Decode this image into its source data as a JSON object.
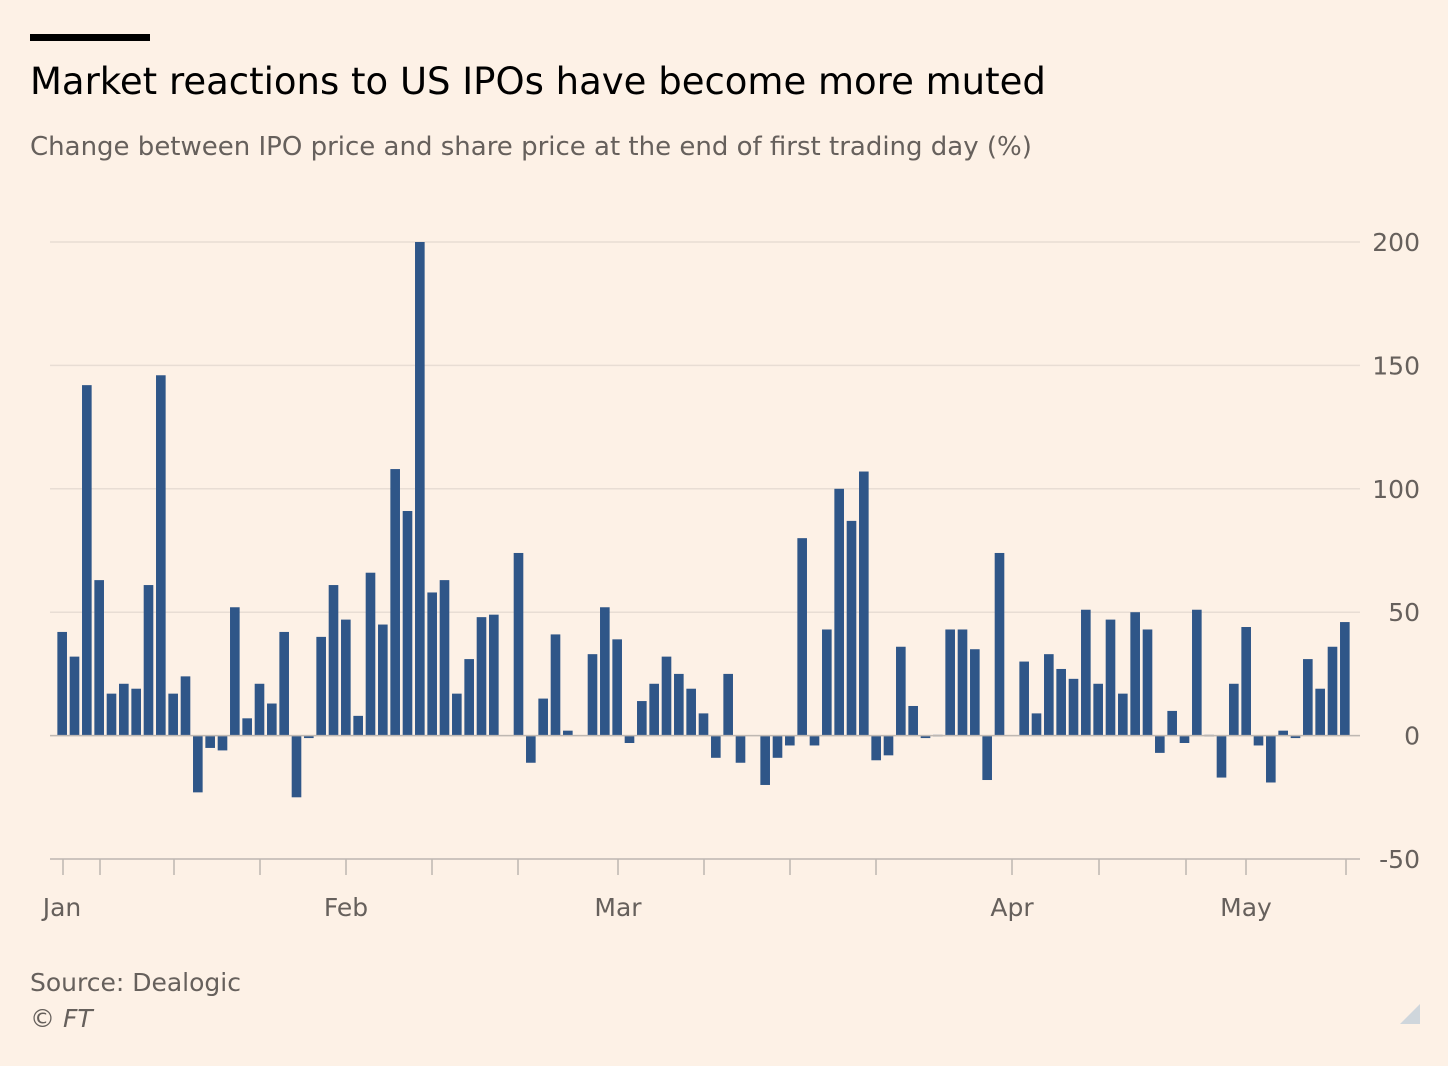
{
  "title": "Market reactions to US IPOs have become more muted",
  "subtitle": "Change between IPO price and share price at the end of first trading day (%)",
  "source": "Source: Dealogic",
  "copyright": "© FT",
  "colors": {
    "background": "#fdf1e6",
    "bar": "#2f5688",
    "grid": "#e8ddd4",
    "axis": "#bdb6b0",
    "text": "#66605c"
  },
  "chart_data": {
    "type": "bar",
    "title": "Market reactions to US IPOs have become more muted",
    "subtitle": "Change between IPO price and share price at the end of first trading day (%)",
    "ylim": [
      -50,
      200
    ],
    "yticks": [
      200,
      150,
      100,
      50,
      0,
      -50
    ],
    "xticks": [
      "Jan",
      "Feb",
      "Mar",
      "Apr",
      "May"
    ],
    "grid": true,
    "y_axis_position": "right",
    "values": [
      42,
      32,
      142,
      63,
      17,
      21,
      19,
      61,
      146,
      17,
      24,
      -23,
      -5,
      -6,
      52,
      7,
      21,
      13,
      42,
      -25,
      -1,
      40,
      61,
      47,
      8,
      66,
      45,
      108,
      91,
      200,
      58,
      63,
      17,
      31,
      48,
      49,
      null,
      74,
      -11,
      15,
      41,
      2,
      null,
      33,
      52,
      39,
      -3,
      14,
      21,
      32,
      25,
      19,
      9,
      -9,
      25,
      -11,
      null,
      -20,
      -9,
      -4,
      80,
      -4,
      43,
      100,
      87,
      107,
      -10,
      -8,
      36,
      12,
      -1,
      0,
      43,
      43,
      35,
      -18,
      74,
      null,
      30,
      9,
      33,
      27,
      23,
      51,
      21,
      47,
      17,
      50,
      43,
      -7,
      10,
      -3,
      51,
      0,
      -17,
      21,
      44,
      -4,
      -19,
      2,
      -1,
      31,
      19,
      36,
      46
    ]
  }
}
